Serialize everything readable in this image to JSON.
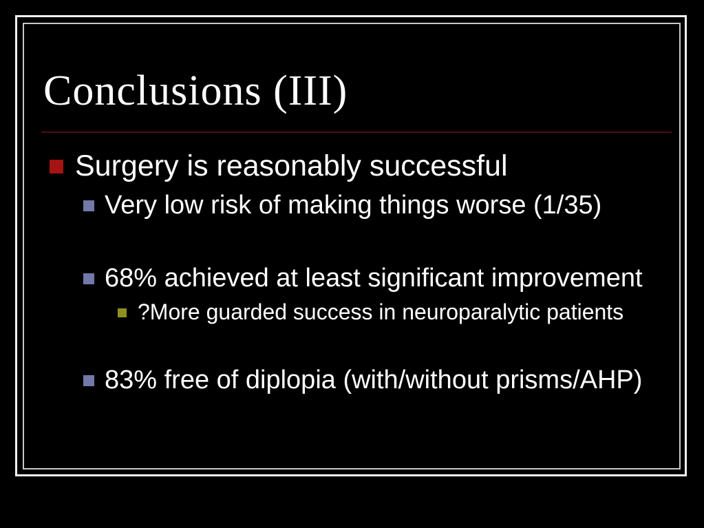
{
  "slide": {
    "title": "Conclusions (III)",
    "bullets": [
      {
        "level": 1,
        "text": "Surgery is reasonably successful"
      },
      {
        "level": 2,
        "text": "Very low risk of making things worse (1/35)"
      },
      {
        "level": 2,
        "text": "68% achieved at least significant improvement"
      },
      {
        "level": 3,
        "text": "?More guarded success in neuroparalytic patients"
      },
      {
        "level": 2,
        "text": "83% free of diplopia (with/without prisms/AHP)"
      }
    ],
    "colors": {
      "background": "#000000",
      "frame_outer": "#f4f4f4",
      "frame_inner": "#c9c9c9",
      "title_text": "#ffffff",
      "body_text": "#ffffff",
      "title_rule": "#500f0f",
      "bullet_level1": "#a51313",
      "bullet_level2": "#7278a8",
      "bullet_level3": "#8f901f"
    }
  }
}
